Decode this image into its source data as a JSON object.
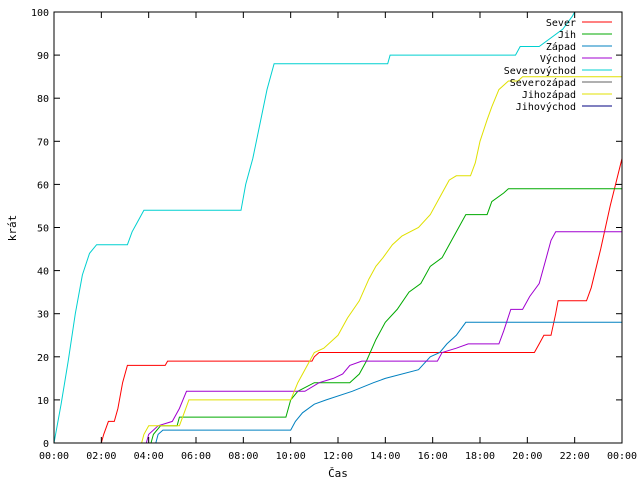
{
  "chart_data": {
    "type": "line",
    "title": "",
    "xlabel": "Čas",
    "ylabel": "krát",
    "xlim": [
      0,
      24
    ],
    "ylim": [
      0,
      100
    ],
    "x_ticks": [
      {
        "value": 0,
        "label": "00:00"
      },
      {
        "value": 2,
        "label": "02:00"
      },
      {
        "value": 4,
        "label": "04:00"
      },
      {
        "value": 6,
        "label": "06:00"
      },
      {
        "value": 8,
        "label": "08:00"
      },
      {
        "value": 10,
        "label": "10:00"
      },
      {
        "value": 12,
        "label": "12:00"
      },
      {
        "value": 14,
        "label": "14:00"
      },
      {
        "value": 16,
        "label": "16:00"
      },
      {
        "value": 18,
        "label": "18:00"
      },
      {
        "value": 20,
        "label": "20:00"
      },
      {
        "value": 22,
        "label": "22:00"
      },
      {
        "value": 24,
        "label": "00:00"
      }
    ],
    "y_ticks": [
      {
        "value": 0,
        "label": "0"
      },
      {
        "value": 10,
        "label": "10"
      },
      {
        "value": 20,
        "label": "20"
      },
      {
        "value": 30,
        "label": "30"
      },
      {
        "value": 40,
        "label": "40"
      },
      {
        "value": 50,
        "label": "50"
      },
      {
        "value": 60,
        "label": "60"
      },
      {
        "value": 70,
        "label": "70"
      },
      {
        "value": 80,
        "label": "80"
      },
      {
        "value": 90,
        "label": "90"
      },
      {
        "value": 100,
        "label": "100"
      }
    ],
    "grid": false,
    "legend_position": "top-right",
    "series": [
      {
        "name": "Sever",
        "color": "#ff0000",
        "points": [
          [
            2.0,
            0
          ],
          [
            2.1,
            2
          ],
          [
            2.3,
            5
          ],
          [
            2.55,
            5
          ],
          [
            2.7,
            8
          ],
          [
            2.9,
            14
          ],
          [
            3.1,
            18
          ],
          [
            4.7,
            18
          ],
          [
            4.8,
            19
          ],
          [
            10.9,
            19
          ],
          [
            11.0,
            20
          ],
          [
            11.2,
            21
          ],
          [
            20.3,
            21
          ],
          [
            20.5,
            23
          ],
          [
            20.7,
            25
          ],
          [
            21.0,
            25
          ],
          [
            21.2,
            30
          ],
          [
            21.3,
            33
          ],
          [
            22.5,
            33
          ],
          [
            22.7,
            36
          ],
          [
            23.1,
            45
          ],
          [
            23.5,
            55
          ],
          [
            24.0,
            66
          ]
        ]
      },
      {
        "name": "Jih",
        "color": "#00aa00",
        "points": [
          [
            4.1,
            0
          ],
          [
            4.2,
            2
          ],
          [
            4.5,
            4
          ],
          [
            5.2,
            4
          ],
          [
            5.3,
            6
          ],
          [
            9.8,
            6
          ],
          [
            10.0,
            10
          ],
          [
            10.3,
            12
          ],
          [
            11.0,
            14
          ],
          [
            12.5,
            14
          ],
          [
            12.9,
            16
          ],
          [
            13.2,
            19
          ],
          [
            13.6,
            24
          ],
          [
            14.0,
            28
          ],
          [
            14.5,
            31
          ],
          [
            15.0,
            35
          ],
          [
            15.5,
            37
          ],
          [
            15.9,
            41
          ],
          [
            16.4,
            43
          ],
          [
            16.8,
            47
          ],
          [
            17.1,
            50
          ],
          [
            17.4,
            53
          ],
          [
            18.3,
            53
          ],
          [
            18.5,
            56
          ],
          [
            19.0,
            58
          ],
          [
            19.2,
            59
          ],
          [
            24.0,
            59
          ]
        ]
      },
      {
        "name": "Západ",
        "color": "#0080c0",
        "points": [
          [
            4.3,
            0
          ],
          [
            4.4,
            2
          ],
          [
            4.6,
            3
          ],
          [
            10.0,
            3
          ],
          [
            10.2,
            5
          ],
          [
            10.5,
            7
          ],
          [
            11.0,
            9
          ],
          [
            11.5,
            10
          ],
          [
            12.6,
            12
          ],
          [
            13.5,
            14
          ],
          [
            14.0,
            15
          ],
          [
            15.4,
            17
          ],
          [
            15.9,
            20
          ],
          [
            16.3,
            21
          ],
          [
            16.6,
            23
          ],
          [
            17.0,
            25
          ],
          [
            17.4,
            28
          ],
          [
            24.0,
            28
          ]
        ]
      },
      {
        "name": "Východ",
        "color": "#a000d0",
        "points": [
          [
            3.9,
            0
          ],
          [
            4.0,
            2
          ],
          [
            4.4,
            4
          ],
          [
            5.0,
            5
          ],
          [
            5.3,
            8
          ],
          [
            5.6,
            12
          ],
          [
            10.6,
            12
          ],
          [
            11.2,
            14
          ],
          [
            11.8,
            15
          ],
          [
            12.2,
            16
          ],
          [
            12.5,
            18
          ],
          [
            13.0,
            19
          ],
          [
            16.2,
            19
          ],
          [
            16.4,
            21
          ],
          [
            17.0,
            22
          ],
          [
            17.5,
            23
          ],
          [
            18.8,
            23
          ],
          [
            19.0,
            26
          ],
          [
            19.3,
            31
          ],
          [
            19.8,
            31
          ],
          [
            20.1,
            34
          ],
          [
            20.5,
            37
          ],
          [
            20.8,
            43
          ],
          [
            21.0,
            47
          ],
          [
            21.2,
            49
          ],
          [
            24.0,
            49
          ]
        ]
      },
      {
        "name": "Severovýchod",
        "color": "#00d0d0",
        "points": [
          [
            0.0,
            0
          ],
          [
            0.3,
            9
          ],
          [
            0.6,
            19
          ],
          [
            0.9,
            30
          ],
          [
            1.2,
            39
          ],
          [
            1.5,
            44
          ],
          [
            1.8,
            46
          ],
          [
            3.1,
            46
          ],
          [
            3.3,
            49
          ],
          [
            3.5,
            51
          ],
          [
            3.8,
            54
          ],
          [
            7.9,
            54
          ],
          [
            8.1,
            60
          ],
          [
            8.4,
            66
          ],
          [
            8.7,
            74
          ],
          [
            9.0,
            82
          ],
          [
            9.3,
            88
          ],
          [
            14.1,
            88
          ],
          [
            14.2,
            90
          ],
          [
            19.5,
            90
          ],
          [
            19.7,
            92
          ],
          [
            20.5,
            92
          ],
          [
            21.5,
            96
          ],
          [
            21.9,
            99
          ],
          [
            22.0,
            100
          ]
        ]
      },
      {
        "name": "Severozápad",
        "color": "#606060",
        "points": []
      },
      {
        "name": "Jihozápad",
        "color": "#e0e000",
        "points": [
          [
            3.7,
            0
          ],
          [
            3.8,
            2
          ],
          [
            4.0,
            4
          ],
          [
            5.3,
            4
          ],
          [
            5.5,
            7
          ],
          [
            5.7,
            10
          ],
          [
            10.0,
            10
          ],
          [
            10.3,
            14
          ],
          [
            10.6,
            17
          ],
          [
            11.0,
            21
          ],
          [
            11.4,
            22
          ],
          [
            12.0,
            25
          ],
          [
            12.4,
            29
          ],
          [
            12.9,
            33
          ],
          [
            13.3,
            38
          ],
          [
            13.6,
            41
          ],
          [
            13.9,
            43
          ],
          [
            14.3,
            46
          ],
          [
            14.7,
            48
          ],
          [
            15.4,
            50
          ],
          [
            15.9,
            53
          ],
          [
            16.3,
            57
          ],
          [
            16.7,
            61
          ],
          [
            17.0,
            62
          ],
          [
            17.6,
            62
          ],
          [
            17.8,
            65
          ],
          [
            18.0,
            70
          ],
          [
            18.3,
            75
          ],
          [
            18.5,
            78
          ],
          [
            18.8,
            82
          ],
          [
            19.2,
            84
          ],
          [
            19.6,
            84
          ],
          [
            19.8,
            85
          ],
          [
            24.0,
            85
          ]
        ]
      },
      {
        "name": "Jihovýchod",
        "color": "#000080",
        "points": []
      }
    ]
  }
}
